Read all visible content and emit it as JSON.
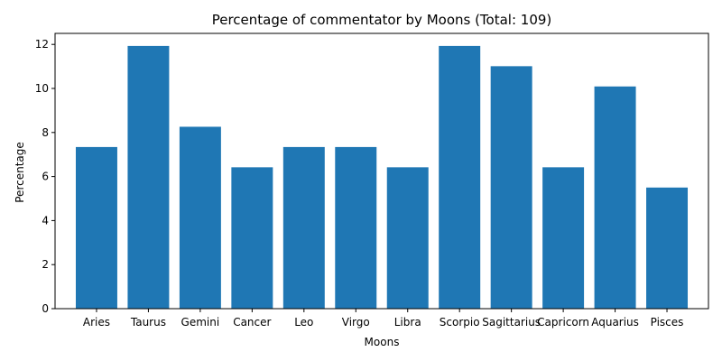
{
  "chart_data": {
    "type": "bar",
    "title": "Percentage of commentator by Moons (Total: 109)",
    "xlabel": "Moons",
    "ylabel": "Percentage",
    "categories": [
      "Aries",
      "Taurus",
      "Gemini",
      "Cancer",
      "Leo",
      "Virgo",
      "Libra",
      "Scorpio",
      "Sagittarius",
      "Capricorn",
      "Aquarius",
      "Pisces"
    ],
    "values": [
      7.34,
      11.93,
      8.26,
      6.42,
      7.34,
      7.34,
      6.42,
      11.93,
      11.01,
      6.42,
      10.09,
      5.5
    ],
    "ylim": [
      0,
      12.5
    ],
    "yticks": [
      0,
      2,
      4,
      6,
      8,
      10,
      12
    ],
    "grid": false,
    "bar_color": "#1f77b4"
  }
}
